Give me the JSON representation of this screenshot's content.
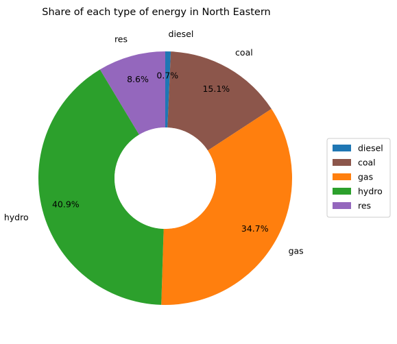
{
  "chart_data": {
    "type": "pie",
    "title": "Share of each type of energy in North Eastern",
    "donut": true,
    "start_angle_deg": 90,
    "direction": "clockwise",
    "legend_placement": "center-right",
    "slices": [
      {
        "label": "diesel",
        "value": 0.7,
        "pct_label": "0.7%",
        "color": "#1f77b4"
      },
      {
        "label": "coal",
        "value": 15.1,
        "pct_label": "15.1%",
        "color": "#8c564b"
      },
      {
        "label": "gas",
        "value": 34.7,
        "pct_label": "34.7%",
        "color": "#ff7f0e"
      },
      {
        "label": "hydro",
        "value": 40.9,
        "pct_label": "40.9%",
        "color": "#2ca02c"
      },
      {
        "label": "res",
        "value": 8.6,
        "pct_label": "8.6%",
        "color": "#9467bd"
      }
    ]
  }
}
